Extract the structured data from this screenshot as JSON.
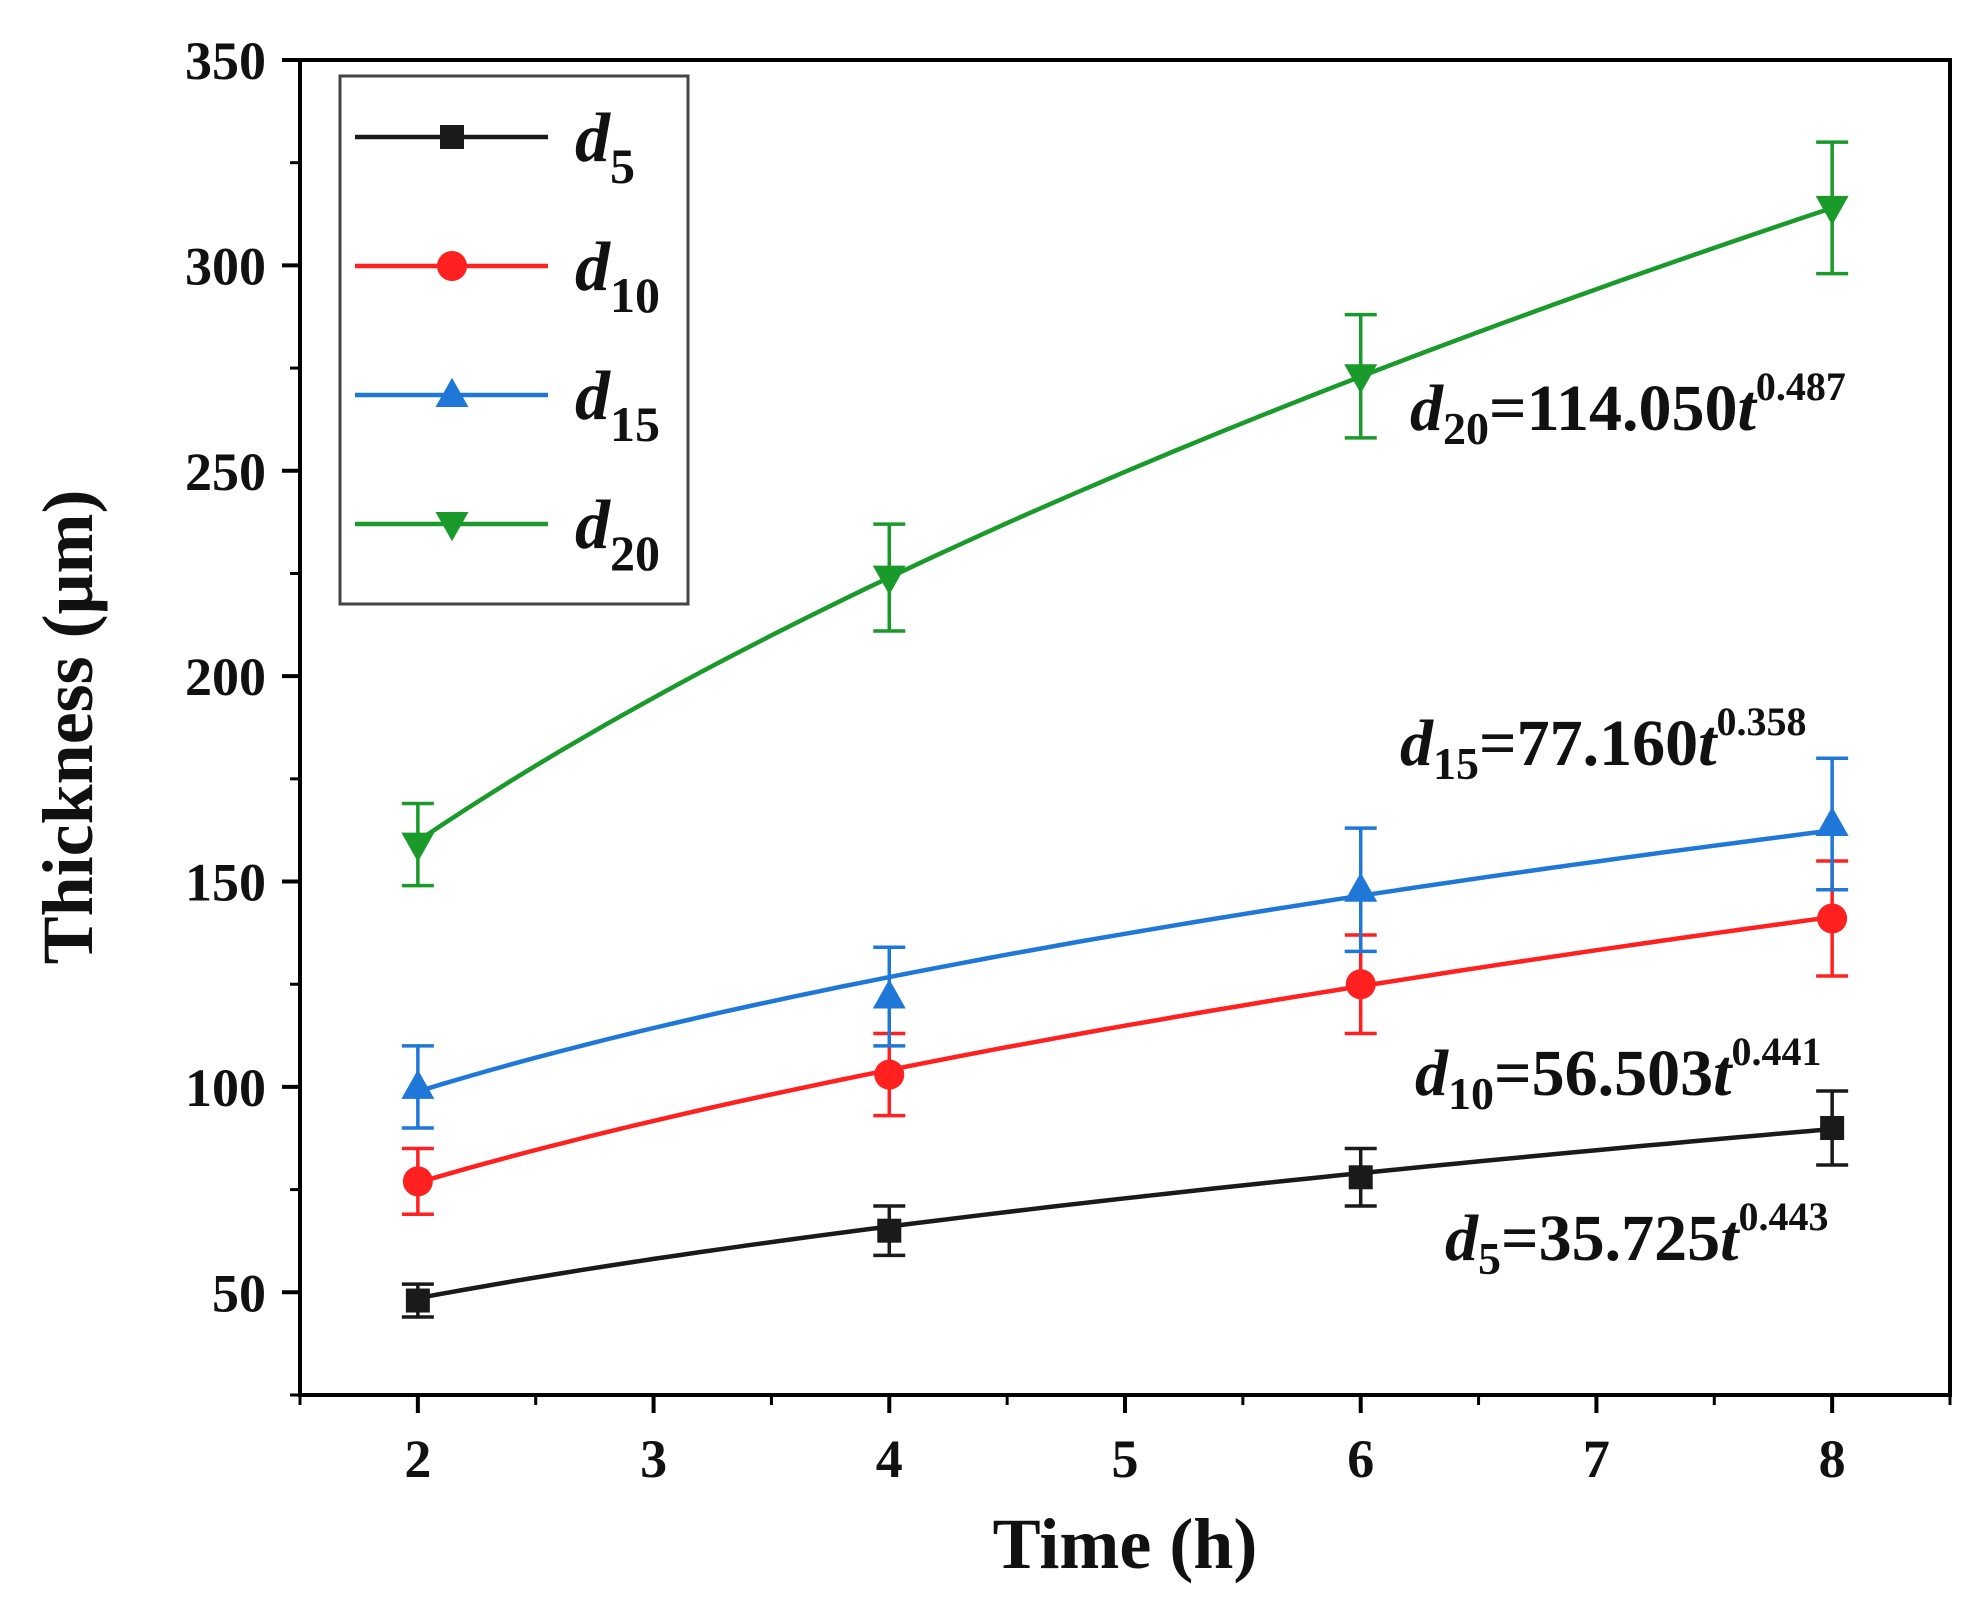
{
  "chart_data": {
    "type": "line",
    "title": "",
    "xlabel": "Time (h)",
    "ylabel": "Thickness (μm)",
    "xlim": [
      1.5,
      8.5
    ],
    "ylim": [
      25,
      350
    ],
    "xticks": [
      2,
      3,
      4,
      5,
      6,
      7,
      8
    ],
    "yticks": [
      50,
      100,
      150,
      200,
      250,
      300,
      350
    ],
    "x": [
      2,
      4,
      6,
      8
    ],
    "legend_position": "top-left",
    "series": [
      {
        "name": "d5",
        "sub": "5",
        "color": "#1a1a1a",
        "marker": "square",
        "values": [
          48,
          65,
          78,
          90
        ],
        "errors": [
          4,
          6,
          7,
          9
        ],
        "fit": {
          "a": 35.725,
          "b": 0.443
        },
        "equation": {
          "var": "d",
          "sub": "5",
          "coef": "=35.725",
          "t": "t",
          "exp": "0.443"
        }
      },
      {
        "name": "d10",
        "sub": "10",
        "color": "#ff2020",
        "marker": "circle",
        "values": [
          77,
          103,
          125,
          141
        ],
        "errors": [
          8,
          10,
          12,
          14
        ],
        "fit": {
          "a": 56.503,
          "b": 0.441
        },
        "equation": {
          "var": "d",
          "sub": "10",
          "coef": "=56.503",
          "t": "t",
          "exp": "0.441"
        }
      },
      {
        "name": "d15",
        "sub": "15",
        "color": "#1f78d8",
        "marker": "triangle-up",
        "values": [
          100,
          122,
          148,
          164
        ],
        "errors": [
          10,
          12,
          15,
          16
        ],
        "fit": {
          "a": 77.16,
          "b": 0.358
        },
        "equation": {
          "var": "d",
          "sub": "15",
          "coef": "=77.160",
          "t": "t",
          "exp": "0.358"
        }
      },
      {
        "name": "d20",
        "sub": "20",
        "color": "#1a9a2a",
        "marker": "triangle-down",
        "values": [
          159,
          224,
          273,
          314
        ],
        "errors": [
          10,
          13,
          15,
          16
        ],
        "fit": {
          "a": 114.05,
          "b": 0.487
        },
        "equation": {
          "var": "d",
          "sub": "20",
          "coef": "=114.050",
          "t": "t",
          "exp": "0.487"
        }
      }
    ]
  }
}
